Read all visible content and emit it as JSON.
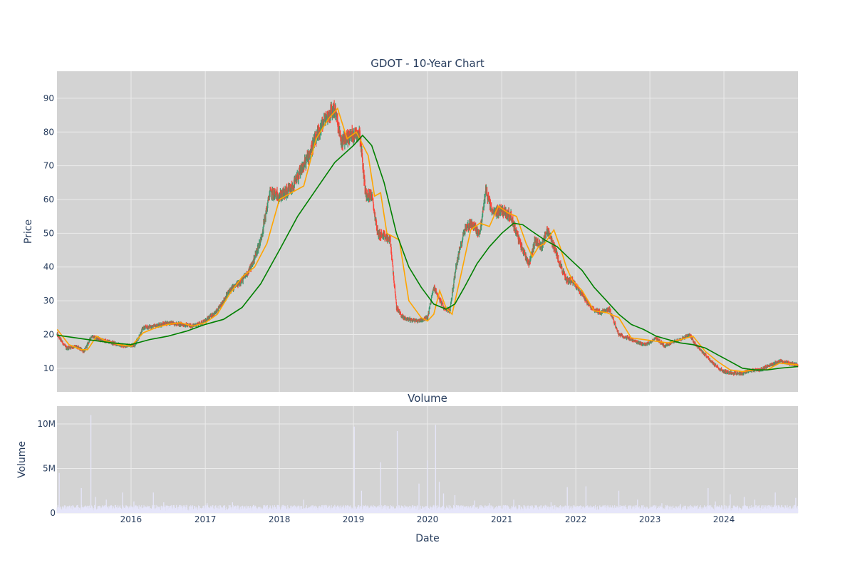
{
  "chart_data": [
    {
      "type": "candlestick",
      "title": "GDOT - 10-Year Chart",
      "xlabel": "",
      "ylabel": "Price",
      "xlim": [
        "2015-01-01",
        "2024-12-31"
      ],
      "ylim": [
        3,
        98
      ],
      "yticks": [
        10,
        20,
        30,
        40,
        50,
        60,
        70,
        80,
        90
      ],
      "grid": true,
      "colors": {
        "increasing": "#3D9970",
        "decreasing": "#FF4136",
        "ma_short": "#FFA500",
        "ma_long": "#008000"
      },
      "close_series": {
        "x": [
          "2015-01-02",
          "2015-02-15",
          "2015-04-01",
          "2015-05-15",
          "2015-06-20",
          "2015-08-01",
          "2015-10-01",
          "2015-12-01",
          "2016-01-20",
          "2016-03-01",
          "2016-05-01",
          "2016-07-01",
          "2016-09-01",
          "2016-11-01",
          "2017-01-01",
          "2017-03-01",
          "2017-05-01",
          "2017-07-01",
          "2017-08-15",
          "2017-10-01",
          "2017-11-15",
          "2018-01-01",
          "2018-03-01",
          "2018-05-01",
          "2018-07-01",
          "2018-08-15",
          "2018-10-01",
          "2018-11-01",
          "2018-12-15",
          "2019-02-01",
          "2019-03-01",
          "2019-04-01",
          "2019-05-01",
          "2019-06-01",
          "2019-07-01",
          "2019-08-01",
          "2019-09-01",
          "2019-10-01",
          "2019-11-15",
          "2020-01-01",
          "2020-02-01",
          "2020-03-20",
          "2020-04-20",
          "2020-05-20",
          "2020-07-01",
          "2020-08-01",
          "2020-09-15",
          "2020-10-15",
          "2020-11-15",
          "2021-01-01",
          "2021-02-15",
          "2021-04-01",
          "2021-05-15",
          "2021-06-15",
          "2021-07-15",
          "2021-08-15",
          "2021-09-15",
          "2021-10-15",
          "2021-11-15",
          "2021-12-15",
          "2022-02-01",
          "2022-03-15",
          "2022-05-01",
          "2022-06-15",
          "2022-08-01",
          "2022-09-15",
          "2022-11-01",
          "2022-12-15",
          "2023-02-01",
          "2023-03-15",
          "2023-05-01",
          "2023-06-15",
          "2023-07-15",
          "2023-08-15",
          "2023-10-01",
          "2023-11-15",
          "2024-01-01",
          "2024-02-15",
          "2024-04-01",
          "2024-05-15",
          "2024-07-01",
          "2024-08-15",
          "2024-10-01",
          "2024-11-15",
          "2024-12-31"
        ],
        "close": [
          20,
          16,
          16.5,
          15,
          19.5,
          18.5,
          17.5,
          16.5,
          17,
          22,
          22.5,
          23.5,
          23,
          22.5,
          24,
          27,
          33,
          36,
          40,
          48,
          62,
          61,
          63,
          70,
          78,
          84,
          87,
          77,
          79,
          80,
          62,
          61,
          50,
          49,
          48,
          28,
          25,
          24.5,
          24,
          25,
          34,
          28,
          27,
          40,
          51,
          53,
          50,
          63,
          56,
          57,
          55,
          47,
          41,
          48,
          46,
          51,
          46,
          41,
          36,
          36,
          32,
          28,
          26.5,
          27.5,
          20,
          19,
          17.5,
          17,
          19,
          16.5,
          18,
          19,
          20,
          17,
          14,
          11,
          9,
          8.5,
          8.5,
          9.5,
          9.5,
          11,
          12,
          11.5,
          11
        ]
      },
      "ma_short": {
        "x": [
          "2015-01-02",
          "2015-03-01",
          "2015-05-01",
          "2015-06-01",
          "2015-07-15",
          "2015-09-01",
          "2015-11-01",
          "2016-01-01",
          "2016-03-01",
          "2016-05-01",
          "2016-07-01",
          "2016-09-01",
          "2016-11-01",
          "2017-01-01",
          "2017-03-01",
          "2017-05-01",
          "2017-07-01",
          "2017-09-01",
          "2017-11-01",
          "2018-01-01",
          "2018-03-01",
          "2018-05-01",
          "2018-07-01",
          "2018-09-01",
          "2018-10-15",
          "2018-12-01",
          "2019-01-15",
          "2019-03-15",
          "2019-04-15",
          "2019-05-15",
          "2019-06-15",
          "2019-07-15",
          "2019-08-15",
          "2019-10-01",
          "2019-12-01",
          "2020-01-01",
          "2020-02-01",
          "2020-03-01",
          "2020-04-01",
          "2020-05-01",
          "2020-06-15",
          "2020-08-01",
          "2020-09-15",
          "2020-11-01",
          "2020-12-15",
          "2021-02-01",
          "2021-03-15",
          "2021-05-01",
          "2021-06-01",
          "2021-07-01",
          "2021-08-01",
          "2021-09-15",
          "2021-10-15",
          "2021-11-15",
          "2021-12-15",
          "2022-02-01",
          "2022-04-01",
          "2022-06-01",
          "2022-08-01",
          "2022-10-01",
          "2022-12-01",
          "2023-02-01",
          "2023-04-01",
          "2023-06-01",
          "2023-08-01",
          "2023-10-01",
          "2023-12-01",
          "2024-02-01",
          "2024-04-01",
          "2024-06-01",
          "2024-08-01",
          "2024-10-01",
          "2024-12-31"
        ],
        "values": [
          21.5,
          17,
          15.5,
          15.5,
          19.5,
          18,
          17,
          16.5,
          20.5,
          22,
          23,
          23.5,
          22.5,
          23.5,
          26,
          32,
          37,
          40,
          47,
          60,
          62,
          64,
          78,
          84,
          87,
          78,
          80,
          73,
          61,
          62,
          50,
          49,
          48,
          30,
          25,
          24,
          26,
          33,
          28,
          26,
          38,
          51,
          53,
          52,
          58,
          56,
          55,
          47,
          43,
          46,
          47,
          51,
          46,
          40,
          36,
          33,
          27,
          26.5,
          25,
          19,
          18.5,
          18,
          17.5,
          18.5,
          19.5,
          15,
          12,
          9.5,
          9,
          9.5,
          9.5,
          11.5,
          11
        ]
      },
      "ma_long": {
        "x": [
          "2015-01-02",
          "2015-06-01",
          "2015-10-01",
          "2016-01-01",
          "2016-04-01",
          "2016-07-01",
          "2016-10-01",
          "2017-01-01",
          "2017-04-01",
          "2017-07-01",
          "2017-10-01",
          "2018-01-01",
          "2018-04-01",
          "2018-07-01",
          "2018-10-01",
          "2019-01-01",
          "2019-02-15",
          "2019-04-01",
          "2019-06-01",
          "2019-08-01",
          "2019-10-01",
          "2019-12-01",
          "2020-02-01",
          "2020-04-01",
          "2020-05-15",
          "2020-07-01",
          "2020-09-01",
          "2020-11-01",
          "2021-01-01",
          "2021-03-01",
          "2021-04-15",
          "2021-06-01",
          "2021-08-01",
          "2021-10-01",
          "2021-12-01",
          "2022-02-01",
          "2022-04-01",
          "2022-06-01",
          "2022-08-01",
          "2022-10-01",
          "2022-12-01",
          "2023-02-01",
          "2023-04-01",
          "2023-06-01",
          "2023-08-01",
          "2023-10-01",
          "2023-12-01",
          "2024-02-01",
          "2024-04-01",
          "2024-06-01",
          "2024-08-01",
          "2024-10-01",
          "2024-12-31"
        ],
        "values": [
          19.8,
          18.5,
          17.5,
          17,
          18.5,
          19.5,
          21,
          23,
          24.5,
          28,
          35,
          45,
          55,
          63,
          71,
          76,
          79,
          76,
          65,
          50,
          40,
          34,
          29,
          27.5,
          29,
          34,
          41,
          46,
          50,
          53,
          52.5,
          50.5,
          48,
          46,
          42.5,
          39,
          34,
          30,
          26,
          23,
          21.5,
          19.5,
          18.5,
          17.5,
          17,
          16,
          14,
          12,
          10,
          9.5,
          9.5,
          10,
          10.5
        ]
      }
    },
    {
      "type": "bar",
      "title": "Volume",
      "xlabel": "Date",
      "ylabel": "Volume",
      "ylim": [
        0,
        12000000
      ],
      "yticks": [
        0,
        5000000,
        10000000
      ],
      "ytick_labels": [
        "0",
        "5M",
        "10M"
      ],
      "xtick_labels": [
        "2016",
        "2017",
        "2018",
        "2019",
        "2020",
        "2021",
        "2022",
        "2023",
        "2024"
      ],
      "grid": true,
      "color": "#e6e6fa",
      "baseline": 600000,
      "spikes": {
        "x": [
          "2015-01-12",
          "2015-05-01",
          "2015-06-17",
          "2015-07-10",
          "2015-09-01",
          "2015-11-20",
          "2016-01-15",
          "2016-04-20",
          "2016-06-10",
          "2016-10-01",
          "2017-01-10",
          "2017-05-15",
          "2018-01-20",
          "2018-05-01",
          "2018-10-01",
          "2019-01-05",
          "2019-02-10",
          "2019-05-15",
          "2019-08-05",
          "2019-11-20",
          "2020-01-01",
          "2020-02-10",
          "2020-02-28",
          "2020-03-20",
          "2020-05-15",
          "2020-08-20",
          "2020-11-01",
          "2021-03-01",
          "2021-09-01",
          "2021-11-20",
          "2022-02-20",
          "2022-08-01",
          "2022-11-01",
          "2023-03-01",
          "2023-06-01",
          "2023-10-15",
          "2023-11-20",
          "2024-02-01",
          "2024-04-10",
          "2024-06-01",
          "2024-09-10",
          "2024-12-20"
        ],
        "values": [
          4500000,
          2800000,
          11000000,
          1800000,
          1500000,
          2300000,
          1300000,
          2300000,
          1200000,
          900000,
          1100000,
          1200000,
          900000,
          1500000,
          900000,
          9700000,
          2500000,
          5700000,
          9200000,
          3300000,
          5900000,
          9900000,
          3500000,
          2200000,
          2000000,
          1400000,
          1100000,
          1500000,
          1200000,
          2900000,
          3000000,
          2500000,
          1500000,
          1100000,
          1000000,
          2800000,
          1300000,
          2100000,
          1800000,
          1500000,
          2300000,
          1700000
        ]
      }
    }
  ]
}
